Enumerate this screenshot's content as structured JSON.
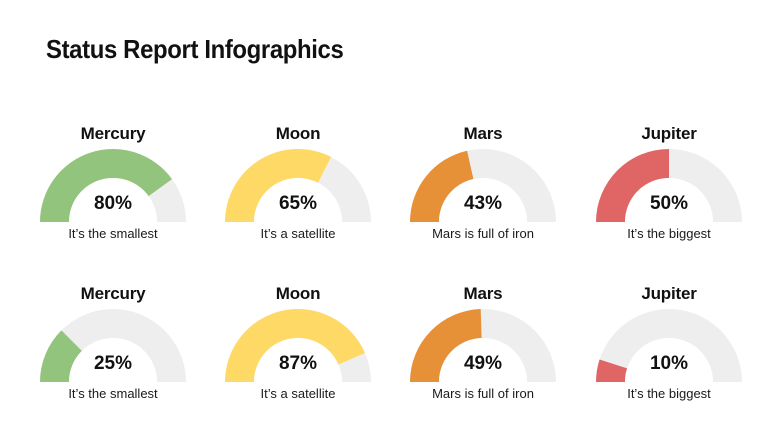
{
  "title": "Status Report Infographics",
  "colors": {
    "track": "#eeeeee",
    "inner": "#ffffff",
    "green": "#93c47d",
    "yellow": "#ffd966",
    "orange": "#e69138",
    "red": "#e06666"
  },
  "gauges": [
    {
      "name": "Mercury",
      "value": 80,
      "percent": "80%",
      "desc": "It’s the smallest",
      "color": "#93c47d"
    },
    {
      "name": "Moon",
      "value": 65,
      "percent": "65%",
      "desc": "It’s a satellite",
      "color": "#ffd966"
    },
    {
      "name": "Mars",
      "value": 43,
      "percent": "43%",
      "desc": "Mars is full of iron",
      "color": "#e69138"
    },
    {
      "name": "Jupiter",
      "value": 50,
      "percent": "50%",
      "desc": "It’s the biggest",
      "color": "#e06666"
    },
    {
      "name": "Mercury",
      "value": 25,
      "percent": "25%",
      "desc": "It’s the smallest",
      "color": "#93c47d"
    },
    {
      "name": "Moon",
      "value": 87,
      "percent": "87%",
      "desc": "It’s a satellite",
      "color": "#ffd966"
    },
    {
      "name": "Mars",
      "value": 49,
      "percent": "49%",
      "desc": "Mars is full of iron",
      "color": "#e69138"
    },
    {
      "name": "Jupiter",
      "value": 10,
      "percent": "10%",
      "desc": "It’s the biggest",
      "color": "#e06666"
    }
  ]
}
